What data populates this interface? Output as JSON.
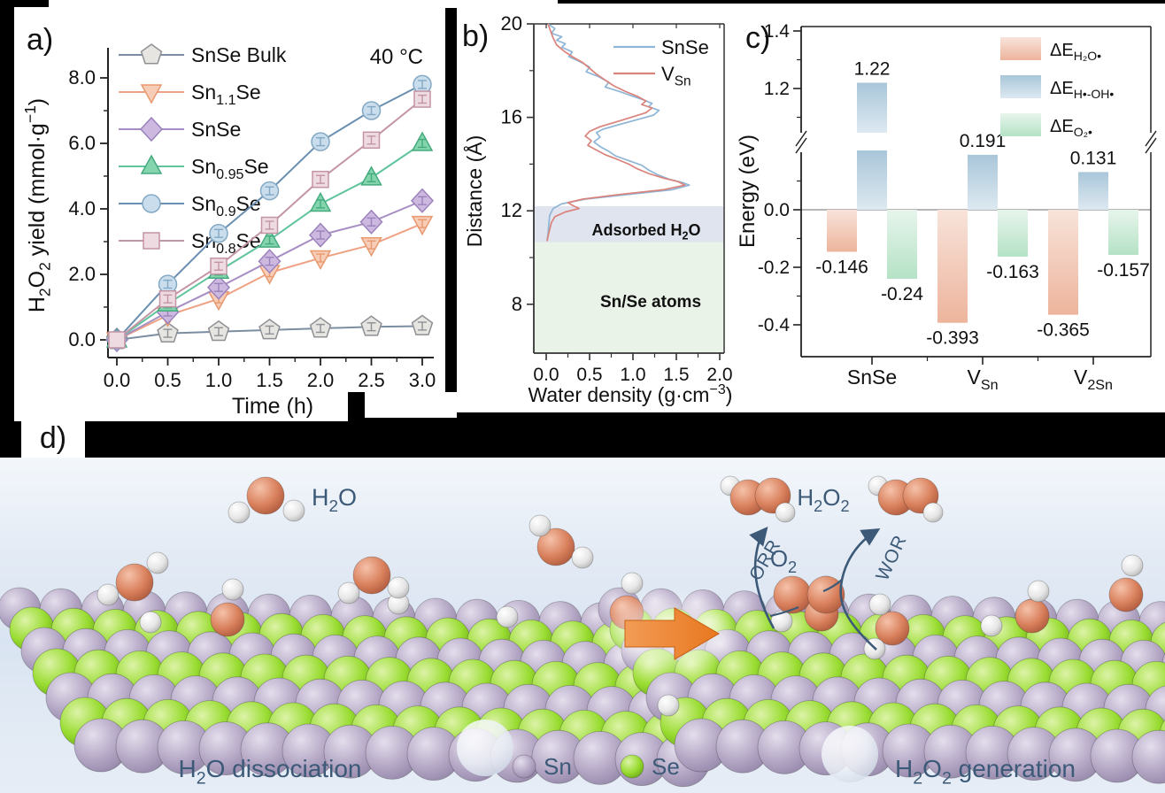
{
  "figure": {
    "panel_a_label": "a)",
    "panel_b_label": "b)",
    "panel_c_label": "c)",
    "panel_d_label": "d)"
  },
  "chart_data": [
    {
      "id": "panel-a",
      "type": "line",
      "annotation": "40 °C",
      "xlabel": "Time (h)",
      "ylabel": "H~2~O~2~ yield (mmol·g^−1^)",
      "xlim": [
        0,
        3
      ],
      "ylim": [
        0,
        9
      ],
      "x": [
        0,
        0.5,
        1.0,
        1.5,
        2.0,
        2.5,
        3.0
      ],
      "xticks": [
        {
          "v": 0,
          "t": "0.0"
        },
        {
          "v": 0.5,
          "t": "0.5"
        },
        {
          "v": 1,
          "t": "1.0"
        },
        {
          "v": 1.5,
          "t": "1.5"
        },
        {
          "v": 2,
          "t": "2.0"
        },
        {
          "v": 2.5,
          "t": "2.5"
        },
        {
          "v": 3,
          "t": "3.0"
        }
      ],
      "yticks": [
        {
          "v": 0,
          "t": "0.0"
        },
        {
          "v": 2,
          "t": "2.0"
        },
        {
          "v": 4,
          "t": "4.0"
        },
        {
          "v": 6,
          "t": "6.0"
        },
        {
          "v": 8,
          "t": "8.0"
        }
      ],
      "yminor": [
        1,
        3,
        5,
        7
      ],
      "error_bar": 0.12,
      "legend_position": "top-left",
      "series": [
        {
          "name": "SnSe Bulk",
          "marker": "pentagon",
          "line": "#7b8da0",
          "fill": "#e6e5e1",
          "stroke": "#8e9094",
          "values": [
            0,
            0.2,
            0.25,
            0.3,
            0.35,
            0.4,
            0.42
          ]
        },
        {
          "name": "Sn~1.1~Se",
          "marker": "triangle-down",
          "line": "#efa183",
          "fill": "#f7cdb8",
          "stroke": "#e8996f",
          "values": [
            0,
            0.75,
            1.25,
            2.05,
            2.5,
            2.9,
            3.55
          ]
        },
        {
          "name": "SnSe",
          "marker": "diamond",
          "line": "#a78fc4",
          "fill": "#cdb9e0",
          "stroke": "#9b82bc",
          "values": [
            0,
            0.85,
            1.6,
            2.4,
            3.2,
            3.6,
            4.25
          ]
        },
        {
          "name": "Sn~0.95~Se",
          "marker": "triangle-up",
          "line": "#5fc49c",
          "fill": "#84d5ae",
          "stroke": "#45ab7f",
          "values": [
            0,
            1.1,
            2.1,
            3.05,
            4.15,
            4.95,
            6.0
          ]
        },
        {
          "name": "Sn~0.9~Se",
          "marker": "circle",
          "line": "#6a8fb0",
          "fill": "#c9dded",
          "stroke": "#84a9c4",
          "values": [
            0,
            1.7,
            3.25,
            4.55,
            6.05,
            7.0,
            7.8
          ]
        },
        {
          "name": "Sn~0.8~Se",
          "marker": "square",
          "line": "#c495a6",
          "fill": "#eedbe1",
          "stroke": "#c394a6",
          "values": [
            0,
            1.25,
            2.25,
            3.5,
            4.9,
            6.1,
            7.35
          ]
        }
      ]
    },
    {
      "id": "panel-b",
      "type": "line",
      "xlabel": "Water density (g·cm^−3^)",
      "ylabel": "Distance (Å)",
      "xlim": [
        0,
        2
      ],
      "ylim": [
        5.9,
        20
      ],
      "xticks": [
        {
          "v": 0,
          "t": "0.0"
        },
        {
          "v": 0.5,
          "t": "0.5"
        },
        {
          "v": 1,
          "t": "1.0"
        },
        {
          "v": 1.5,
          "t": "1.5"
        },
        {
          "v": 2,
          "t": "2.0"
        }
      ],
      "yticks": [
        {
          "v": 8,
          "t": "8"
        },
        {
          "v": 12,
          "t": "12"
        },
        {
          "v": 16,
          "t": "16"
        },
        {
          "v": 20,
          "t": "20"
        }
      ],
      "yminor": [
        10,
        14,
        18
      ],
      "regions": [
        {
          "label": "Adsorbed H~2~O",
          "from": 10.65,
          "to": 12.2,
          "color": "#e0e4ee"
        },
        {
          "label": "Sn/Se atoms",
          "from": 5.9,
          "to": 10.65,
          "color": "#e9f3e7"
        }
      ],
      "series": [
        {
          "name": "SnSe",
          "color": "#8fb6d6",
          "points": [
            [
              0.02,
              20
            ],
            [
              0.1,
              19.8
            ],
            [
              0.06,
              19.6
            ],
            [
              0.18,
              19.45
            ],
            [
              0.12,
              19.3
            ],
            [
              0.22,
              19.15
            ],
            [
              0.18,
              19.0
            ],
            [
              0.3,
              18.8
            ],
            [
              0.26,
              18.6
            ],
            [
              0.38,
              18.4
            ],
            [
              0.5,
              18.15
            ],
            [
              0.46,
              17.95
            ],
            [
              0.6,
              17.75
            ],
            [
              0.72,
              17.5
            ],
            [
              0.68,
              17.3
            ],
            [
              0.85,
              17.1
            ],
            [
              1.0,
              16.9
            ],
            [
              1.12,
              16.75
            ],
            [
              1.22,
              16.6
            ],
            [
              1.18,
              16.45
            ],
            [
              1.3,
              16.3
            ],
            [
              1.24,
              16.1
            ],
            [
              1.05,
              15.9
            ],
            [
              0.85,
              15.7
            ],
            [
              0.66,
              15.5
            ],
            [
              0.58,
              15.35
            ],
            [
              0.62,
              15.15
            ],
            [
              0.55,
              14.95
            ],
            [
              0.62,
              14.75
            ],
            [
              0.72,
              14.55
            ],
            [
              0.8,
              14.35
            ],
            [
              0.95,
              14.15
            ],
            [
              1.1,
              13.95
            ],
            [
              1.18,
              13.75
            ],
            [
              1.28,
              13.55
            ],
            [
              1.42,
              13.35
            ],
            [
              1.58,
              13.2
            ],
            [
              1.65,
              13.1
            ],
            [
              1.45,
              12.9
            ],
            [
              0.95,
              12.7
            ],
            [
              0.45,
              12.5
            ],
            [
              0.18,
              12.3
            ],
            [
              0.08,
              12.1
            ],
            [
              0.04,
              11.8
            ],
            [
              0.03,
              11.4
            ],
            [
              0.02,
              11.0
            ],
            [
              0.01,
              10.75
            ]
          ]
        },
        {
          "name": "V~Sn~",
          "color": "#d9837c",
          "points": [
            [
              0.02,
              20
            ],
            [
              0.05,
              19.7
            ],
            [
              0.08,
              19.4
            ],
            [
              0.12,
              19.1
            ],
            [
              0.2,
              18.85
            ],
            [
              0.3,
              18.6
            ],
            [
              0.42,
              18.35
            ],
            [
              0.5,
              18.1
            ],
            [
              0.58,
              17.85
            ],
            [
              0.68,
              17.6
            ],
            [
              0.78,
              17.35
            ],
            [
              0.92,
              17.1
            ],
            [
              1.05,
              16.9
            ],
            [
              1.15,
              16.7
            ],
            [
              1.1,
              16.55
            ],
            [
              1.22,
              16.4
            ],
            [
              1.15,
              16.2
            ],
            [
              0.98,
              16.0
            ],
            [
              0.8,
              15.8
            ],
            [
              0.62,
              15.6
            ],
            [
              0.5,
              15.4
            ],
            [
              0.45,
              15.2
            ],
            [
              0.52,
              15.0
            ],
            [
              0.48,
              14.8
            ],
            [
              0.58,
              14.6
            ],
            [
              0.68,
              14.4
            ],
            [
              0.82,
              14.2
            ],
            [
              0.95,
              14.0
            ],
            [
              1.05,
              13.8
            ],
            [
              1.18,
              13.6
            ],
            [
              1.35,
              13.4
            ],
            [
              1.52,
              13.25
            ],
            [
              1.6,
              13.1
            ],
            [
              1.35,
              12.9
            ],
            [
              0.85,
              12.7
            ],
            [
              0.42,
              12.5
            ],
            [
              0.25,
              12.35
            ],
            [
              0.32,
              12.2
            ],
            [
              0.38,
              12.1
            ],
            [
              0.22,
              11.95
            ],
            [
              0.1,
              11.75
            ],
            [
              0.06,
              11.5
            ],
            [
              0.04,
              11.2
            ],
            [
              0.02,
              10.9
            ],
            [
              0.01,
              10.7
            ]
          ]
        }
      ]
    },
    {
      "id": "panel-c",
      "type": "bar",
      "ylabel": "Energy (eV)",
      "broken_axis": true,
      "categories": [
        "SnSe",
        "V~Sn~",
        "V~2Sn~"
      ],
      "yticks_lower": [
        {
          "v": 0,
          "t": "0.0"
        },
        {
          "v": -0.2,
          "t": "-0.2"
        },
        {
          "v": -0.4,
          "t": "-0.4"
        }
      ],
      "yminor_lower": [
        0.1,
        -0.1,
        -0.3
      ],
      "yticks_upper": [
        {
          "v": 1.2,
          "t": "1.2"
        },
        {
          "v": 1.4,
          "t": "1.4"
        }
      ],
      "yminor_upper": [
        1.1,
        1.3
      ],
      "series": [
        {
          "name": "ΔE~H₂O•~",
          "grad": [
            "#f8e3da",
            "#edb49c"
          ],
          "values": [
            -0.146,
            -0.393,
            -0.365
          ],
          "labels": [
            "-0.146",
            "-0.393",
            "-0.365"
          ]
        },
        {
          "name": "ΔE~H•-OH•~",
          "grad": [
            "#a9c6d9",
            "#dde9f1"
          ],
          "values": [
            1.22,
            0.191,
            0.131
          ],
          "labels": [
            "1.22",
            "0.191",
            "0.131"
          ]
        },
        {
          "name": "ΔE~O₂•~",
          "grad": [
            "#e7f5ec",
            "#b5e2c6"
          ],
          "values": [
            -0.24,
            -0.163,
            -0.157
          ],
          "labels": [
            "-0.24",
            "-0.163",
            "-0.157"
          ]
        }
      ]
    }
  ],
  "panel_d": {
    "label": "d)",
    "molecule_labels": {
      "h2o": "H~2~O",
      "o2": "O~2~",
      "h2o2": "H~2~O~2~"
    },
    "arrow_labels": {
      "orr": "ORR",
      "wor": "WOR"
    },
    "captions": {
      "left": "H~2~O dissociation",
      "right": "H~2~O~2~ generation"
    },
    "legend": [
      {
        "label": "Sn",
        "atom": "sn"
      },
      {
        "label": "Se",
        "atom": "se"
      }
    ],
    "colors": {
      "sn": "#b3a6c4",
      "se": "#97dc30",
      "o": "#d9805c",
      "h": "#e9e9e9",
      "text": "#3c5a78",
      "arrow_orange": "#e8771f"
    }
  }
}
